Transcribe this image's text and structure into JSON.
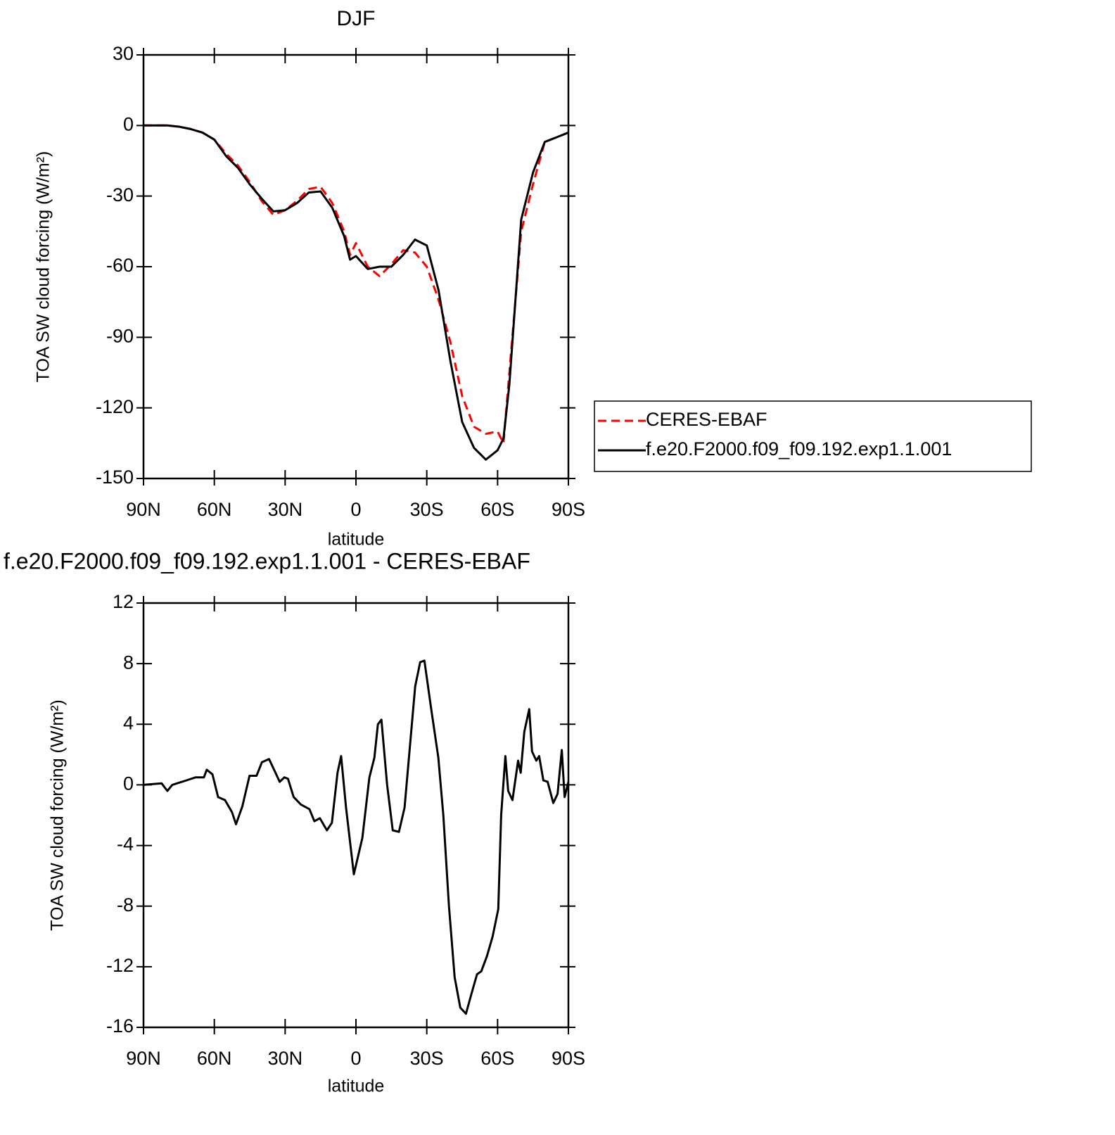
{
  "chart_data": [
    {
      "type": "line",
      "title": "DJF",
      "xlabel": "latitude",
      "ylabel": "TOA SW cloud forcing (W/m²)",
      "xlim": [
        90,
        -90
      ],
      "xticks": [
        {
          "value": 90,
          "label": "90N"
        },
        {
          "value": 60,
          "label": "60N"
        },
        {
          "value": 30,
          "label": "30N"
        },
        0,
        {
          "value": -30,
          "label": "30S"
        },
        {
          "value": -60,
          "label": "60S"
        },
        {
          "value": -90,
          "label": "90S"
        }
      ],
      "ylim": [
        -150,
        30
      ],
      "yticks": [
        -150,
        -120,
        -90,
        -60,
        -30,
        0,
        30
      ],
      "x": [
        90,
        85,
        80,
        75,
        70,
        65,
        60,
        55,
        50,
        45,
        40,
        35,
        30,
        25,
        20,
        15,
        10,
        5,
        2.5,
        0,
        -5,
        -10,
        -15,
        -20,
        -25,
        -30,
        -35,
        -40,
        -45,
        -50,
        -55,
        -60,
        -62.5,
        -65,
        -70,
        -75,
        -80,
        -85,
        -90
      ],
      "series": [
        {
          "name": "CERES-EBAF",
          "color": "#ff0000",
          "linestyle": "dashed",
          "values": [
            0,
            0,
            0,
            -0.5,
            -1.5,
            -3,
            -6,
            -12,
            -17,
            -24,
            -32,
            -38,
            -36,
            -32,
            -27,
            -26,
            -33,
            -45,
            -55,
            -50,
            -60,
            -64,
            -59,
            -53,
            -54,
            -60,
            -74,
            -92,
            -115,
            -128,
            -131,
            -130,
            -135,
            -105,
            -45,
            -25,
            -7,
            -5,
            -3
          ]
        },
        {
          "name": "f.e20.F2000.f09_f09.192.exp1.1.001",
          "color": "#000000",
          "linestyle": "solid",
          "values": [
            0,
            0,
            0,
            -0.5,
            -1.5,
            -3,
            -6,
            -13,
            -18,
            -25,
            -31,
            -36.5,
            -36,
            -33,
            -28.5,
            -28,
            -35,
            -47,
            -57,
            -55.5,
            -61,
            -60,
            -60,
            -55,
            -48.5,
            -51,
            -70,
            -100,
            -126,
            -137,
            -142,
            -138,
            -133,
            -110,
            -40,
            -20,
            -7,
            -5,
            -3
          ]
        }
      ]
    },
    {
      "type": "line",
      "title": "f.e20.F2000.f09_f09.192.exp1.1.001 - CERES-EBAF",
      "xlabel": "latitude",
      "ylabel": "TOA SW cloud forcing (W/m²)",
      "xlim": [
        90,
        -90
      ],
      "xticks": [
        {
          "value": 90,
          "label": "90N"
        },
        {
          "value": 60,
          "label": "60N"
        },
        {
          "value": 30,
          "label": "30N"
        },
        0,
        {
          "value": -30,
          "label": "30S"
        },
        {
          "value": -60,
          "label": "60S"
        },
        {
          "value": -90,
          "label": "90S"
        }
      ],
      "ylim": [
        -16,
        12
      ],
      "yticks": [
        -16,
        -12,
        -8,
        -4,
        0,
        4,
        8,
        12
      ],
      "color": "#000000",
      "x": [
        90,
        82.3,
        79.9,
        77.8,
        71.8,
        67.9,
        64.4,
        63.2,
        60.8,
        58.4,
        55.5,
        52.5,
        50.8,
        48.1,
        45.1,
        42.1,
        39.8,
        36.8,
        34.7,
        32.3,
        30.3,
        28.8,
        26.4,
        23.3,
        19.7,
        17.6,
        15.3,
        12.3,
        10.2,
        7.8,
        6.3,
        4.2,
        0.9,
        -2.7,
        -5.7,
        -7.8,
        -9.3,
        -10.8,
        -13.2,
        -15.6,
        -18.2,
        -20.6,
        -23.0,
        -25.1,
        -27.2,
        -29.0,
        -31.9,
        -34.9,
        -37.0,
        -39.4,
        -41.8,
        -44.2,
        -46.6,
        -48.9,
        -51.3,
        -53.1,
        -55.5,
        -57.9,
        -60.3,
        -61.5,
        -63.3,
        -64.5,
        -66.3,
        -68.7,
        -69.8,
        -71.3,
        -73.4,
        -74.6,
        -76.4,
        -77.6,
        -79.4,
        -81.2,
        -83.6,
        -85.4,
        -87.2,
        -88.4,
        -90
      ],
      "values": [
        0,
        0.1,
        -0.4,
        0,
        0.3,
        0.5,
        0.5,
        1,
        0.7,
        -0.8,
        -1,
        -1.8,
        -2.6,
        -1.4,
        0.6,
        0.6,
        1.5,
        1.7,
        1,
        0.2,
        0.5,
        0.4,
        -0.8,
        -1.3,
        -1.6,
        -2.4,
        -2.2,
        -3,
        -2.5,
        0.8,
        1.9,
        -1.5,
        -5.9,
        -3.5,
        0.5,
        1.8,
        4,
        4.3,
        0,
        -3,
        -3.1,
        -1.5,
        2.8,
        6.5,
        8.1,
        8.2,
        5,
        1.8,
        -2,
        -8,
        -12.7,
        -14.7,
        -15.1,
        -13.8,
        -12.5,
        -12.3,
        -11.3,
        -10,
        -8.2,
        -2,
        1.9,
        -0.4,
        -1,
        1.6,
        0.8,
        3.5,
        5,
        2.2,
        1.6,
        1.9,
        0.3,
        0.2,
        -1.2,
        -0.6,
        2.3,
        -0.8,
        0.2
      ]
    }
  ]
}
